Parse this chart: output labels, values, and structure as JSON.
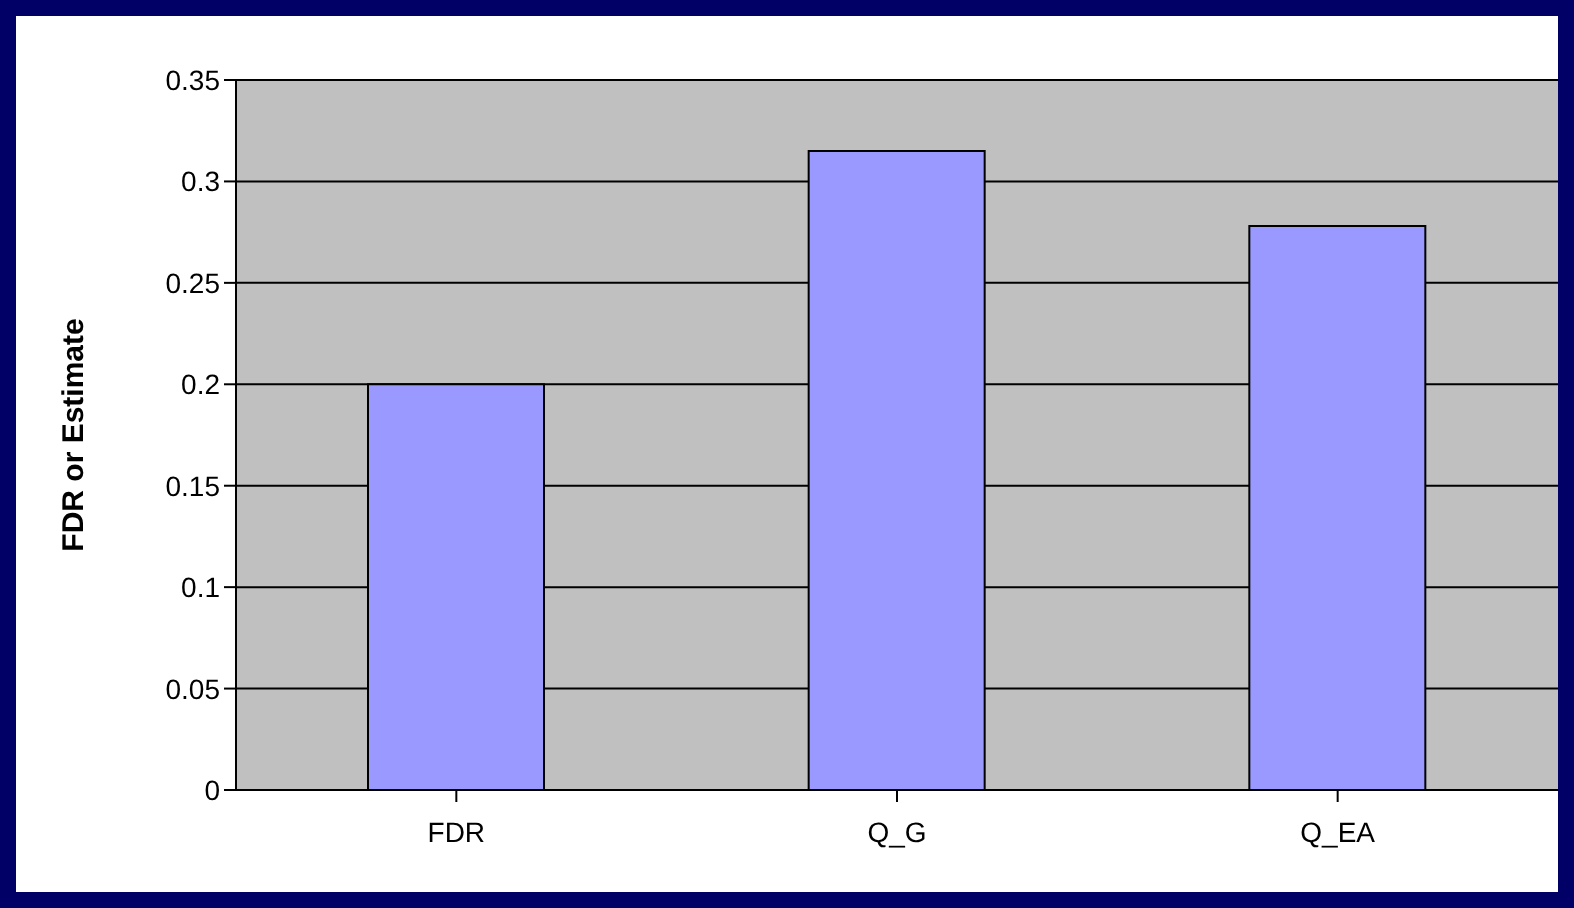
{
  "chart_data": {
    "type": "bar",
    "ylabel": "FDR or Estimate",
    "categories": [
      "FDR",
      "Q_G",
      "Q_EA"
    ],
    "values": [
      0.2,
      0.315,
      0.278
    ],
    "color": "#9999ff",
    "ylim": [
      0,
      0.35
    ],
    "yticks": [
      0,
      0.05,
      0.1,
      0.15,
      0.2,
      0.25,
      0.3,
      0.35
    ],
    "grid": "y",
    "legend": false
  }
}
